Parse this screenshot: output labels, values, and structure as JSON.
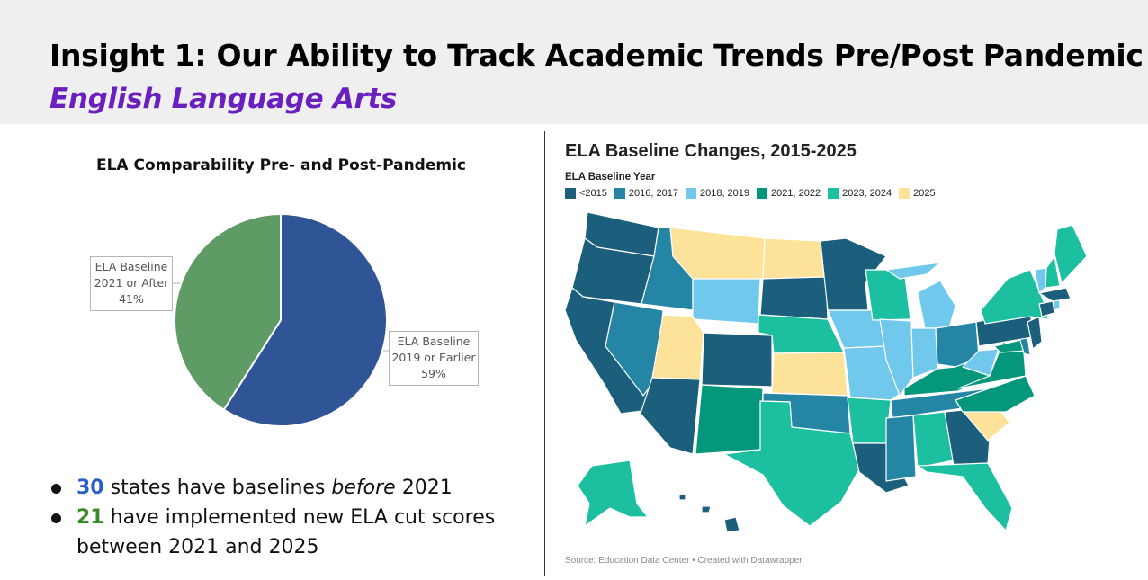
{
  "header": {
    "title": "Insight 1: Our Ability to Track Academic Trends Pre/Post Pandemic",
    "subtitle": "English Language Arts"
  },
  "pie": {
    "callout_left": {
      "line1": "ELA Baseline",
      "line2": "2021 or After",
      "line3": "41%"
    },
    "callout_right": {
      "line1": "ELA Baseline",
      "line2": "2019 or Earlier",
      "line3": "59%"
    }
  },
  "bullets": {
    "b1_number": "30",
    "b1_pre": "states have baselines",
    "b1_em": "before",
    "b1_post": "2021",
    "b2_number": "21",
    "b2_text": "have implemented new ELA cut scores between 2021 and 2025"
  },
  "map": {
    "title": "ELA Baseline Changes, 2015-2025",
    "legend_title": "ELA Baseline Year",
    "source": "Source: Education Data Center • Created with Datawrapper",
    "legend": [
      {
        "label": "<2015",
        "color": "#1b5f7d"
      },
      {
        "label": "2016, 2017",
        "color": "#2485a5"
      },
      {
        "label": "2018, 2019",
        "color": "#70c8ec"
      },
      {
        "label": "2021, 2022",
        "color": "#05977b"
      },
      {
        "label": "2023, 2024",
        "color": "#1cbf9f"
      },
      {
        "label": "2025",
        "color": "#fde29a"
      }
    ]
  },
  "chart_data": [
    {
      "type": "pie",
      "title": "ELA Comparability Pre- and Post-Pandemic",
      "slices": [
        {
          "label": "ELA Baseline 2019 or Earlier",
          "value": 59,
          "color": "#2f5597"
        },
        {
          "label": "ELA Baseline 2021 or After",
          "value": 41,
          "color": "#5f9b64"
        }
      ]
    },
    {
      "type": "choropleth",
      "title": "ELA Baseline Changes, 2015-2025",
      "categories": [
        "<2015",
        "2016, 2017",
        "2018, 2019",
        "2021, 2022",
        "2023, 2024",
        "2025"
      ],
      "states": {
        "WA": "<2015",
        "OR": "<2015",
        "CA": "<2015",
        "AZ": "<2015",
        "CO": "<2015",
        "SD": "<2015",
        "MN": "<2015",
        "GA": "<2015",
        "LA": "<2015",
        "PA": "<2015",
        "NJ": "<2015",
        "MA": "<2015",
        "CT": "<2015",
        "HI": "<2015",
        "ID": "2016, 2017",
        "NV": "2016, 2017",
        "OK": "2016, 2017",
        "MS": "2016, 2017",
        "OH": "2016, 2017",
        "TN": "2016, 2017",
        "DE": "2016, 2017",
        "WY": "2018, 2019",
        "IA": "2018, 2019",
        "MO": "2018, 2019",
        "IL": "2018, 2019",
        "IN": "2018, 2019",
        "MI": "2018, 2019",
        "WV": "2018, 2019",
        "RI": "2018, 2019",
        "VT": "2018, 2019",
        "NM": "2021, 2022",
        "VA": "2021, 2022",
        "NC": "2021, 2022",
        "KY": "2021, 2022",
        "MD": "2021, 2022",
        "NE": "2023, 2024",
        "TX": "2023, 2024",
        "AR": "2023, 2024",
        "AL": "2023, 2024",
        "FL": "2023, 2024",
        "WI": "2023, 2024",
        "NY": "2023, 2024",
        "ME": "2023, 2024",
        "NH": "2023, 2024",
        "AK": "2023, 2024",
        "MT": "2025",
        "ND": "2025",
        "UT": "2025",
        "KS": "2025",
        "SC": "2025"
      }
    }
  ]
}
